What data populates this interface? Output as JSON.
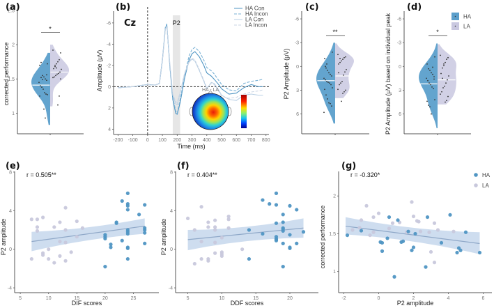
{
  "colors": {
    "HA": "#5b9fcb",
    "LA": "#c9c8e0",
    "HA_point": "#4f95c3",
    "LA_point": "#c8c8dc",
    "fit_line": "#8fa8c8",
    "ci_band": "#c5d7ec",
    "p2_window": "#e6e6e6"
  },
  "chart_data": [
    {
      "id": "a",
      "type": "violin",
      "panel_label": "(a)",
      "ylabel": "corrected performance",
      "ylim": [
        0.7,
        2.55
      ],
      "yticks": [
        1.0,
        1.5,
        2.0,
        2.5
      ],
      "significance": "*",
      "groups": [
        {
          "name": "HA",
          "median": 1.41,
          "range": [
            0.83,
            1.88
          ],
          "points": [
            1.72,
            1.7,
            1.74,
            1.55,
            1.53,
            1.5,
            1.48,
            1.45,
            1.4,
            1.38,
            1.35,
            1.3,
            1.28,
            1.27,
            1.25,
            1.52,
            1.49,
            1.06,
            0.93,
            1.56
          ]
        },
        {
          "name": "LA",
          "median": 1.6,
          "range": [
            1.1,
            2.0
          ],
          "points": [
            1.92,
            1.88,
            1.78,
            1.75,
            1.72,
            1.68,
            1.65,
            1.64,
            1.6,
            1.58,
            1.57,
            1.55,
            1.53,
            1.52,
            1.5,
            1.25,
            1.12,
            1.66,
            1.7
          ]
        }
      ]
    },
    {
      "id": "b",
      "type": "line",
      "panel_label": "(b)",
      "electrode": "Cz",
      "component": "P2",
      "xlabel": "Time (ms)",
      "ylabel": "Amplitude (μV)",
      "xlim": [
        -230,
        820
      ],
      "ylim": [
        4.5,
        -7.5
      ],
      "xticks": [
        -200,
        -100,
        0,
        100,
        200,
        300,
        400,
        500,
        600,
        700,
        800
      ],
      "yticks": [
        -6,
        -4,
        -2,
        0,
        2,
        4
      ],
      "window_ms": [
        170,
        220
      ],
      "topomap_title": "HA - LA",
      "legend": [
        "HA  Con",
        "HA  Incon",
        "LA  Con",
        "LA  Incon"
      ],
      "series": [
        {
          "name": "HA  Con",
          "x": [
            -200,
            -150,
            -100,
            -50,
            0,
            50,
            80,
            100,
            120,
            130,
            150,
            170,
            190,
            200,
            220,
            250,
            280,
            300,
            320,
            350,
            380,
            400,
            430,
            450,
            480,
            500,
            550,
            600,
            650,
            700,
            750,
            780
          ],
          "y": [
            0.1,
            0.05,
            0.0,
            -0.1,
            -0.2,
            -0.15,
            -0.3,
            -2.5,
            -5.5,
            -5.8,
            -2.0,
            1.2,
            2.5,
            2.6,
            1.5,
            -0.8,
            -2.5,
            -3.1,
            -3.3,
            -2.8,
            -2.0,
            -1.3,
            -1.0,
            -0.7,
            -0.2,
            0.2,
            0.7,
            0.6,
            0.1,
            -0.2,
            0.0,
            0.0
          ]
        },
        {
          "name": "HA  Incon",
          "x": [
            -200,
            -150,
            -100,
            -50,
            0,
            50,
            80,
            100,
            120,
            130,
            150,
            170,
            190,
            200,
            220,
            250,
            280,
            300,
            320,
            350,
            380,
            400,
            430,
            450,
            480,
            500,
            550,
            600,
            650,
            700,
            750,
            780
          ],
          "y": [
            0.1,
            0.05,
            0.0,
            -0.1,
            -0.2,
            -0.15,
            -0.3,
            -2.5,
            -5.6,
            -5.9,
            -2.1,
            1.0,
            2.3,
            2.5,
            1.2,
            -1.0,
            -2.9,
            -3.5,
            -3.7,
            -3.3,
            -2.5,
            -1.8,
            -1.5,
            -1.2,
            -0.6,
            -0.2,
            0.3,
            0.4,
            -0.3,
            -0.5,
            -0.6,
            -0.7
          ]
        },
        {
          "name": "LA  Con",
          "x": [
            -200,
            -150,
            -100,
            -50,
            0,
            50,
            80,
            100,
            120,
            130,
            150,
            170,
            190,
            200,
            220,
            250,
            280,
            300,
            320,
            350,
            380,
            400,
            430,
            450,
            480,
            500,
            550,
            600,
            650,
            700,
            750,
            780
          ],
          "y": [
            0.1,
            0.05,
            0.0,
            -0.1,
            -0.2,
            -0.15,
            -0.3,
            -2.4,
            -5.4,
            -5.7,
            -2.2,
            0.8,
            1.6,
            1.7,
            0.6,
            -1.2,
            -2.3,
            -2.6,
            -2.4,
            -1.5,
            -0.5,
            0.2,
            -0.4,
            -0.3,
            0.3,
            0.8,
            1.2,
            1.3,
            0.8,
            0.7,
            0.8,
            0.8
          ]
        },
        {
          "name": "LA  Incon",
          "x": [
            -200,
            -150,
            -100,
            -50,
            0,
            50,
            80,
            100,
            120,
            130,
            150,
            170,
            190,
            200,
            220,
            250,
            280,
            300,
            320,
            350,
            380,
            400,
            430,
            450,
            480,
            500,
            550,
            600,
            650,
            700,
            750,
            780
          ],
          "y": [
            0.1,
            0.05,
            0.0,
            -0.1,
            -0.2,
            -0.15,
            -0.3,
            -2.4,
            -5.4,
            -5.7,
            -2.3,
            0.7,
            1.4,
            1.5,
            0.5,
            -1.3,
            -2.4,
            -2.7,
            -2.5,
            -1.6,
            -0.6,
            0.1,
            -0.3,
            -0.2,
            0.4,
            0.9,
            1.1,
            1.0,
            0.7,
            0.5,
            0.4,
            0.3
          ]
        }
      ]
    },
    {
      "id": "c",
      "type": "violin",
      "panel_label": "(c)",
      "ylabel": "P2 Amplitude (μV)",
      "ylim": [
        8.5,
        -7.5
      ],
      "yticks": [
        -6,
        -3,
        0,
        3,
        6
      ],
      "significance": "**",
      "groups": [
        {
          "name": "HA",
          "median": 1.8,
          "range": [
            -3.0,
            7.2
          ],
          "points": [
            -1.8,
            -1.0,
            0.2,
            0.5,
            0.8,
            1.0,
            1.2,
            1.5,
            1.7,
            1.9,
            2.0,
            2.1,
            2.3,
            2.7,
            2.9,
            3.6,
            4.1,
            4.6,
            4.7,
            5.0,
            5.8,
            0.0,
            -0.3
          ]
        },
        {
          "name": "LA",
          "median": 1.2,
          "range": [
            -2.9,
            4.0
          ],
          "points": [
            -1.5,
            -1.2,
            -1.1,
            -0.9,
            -0.7,
            -0.5,
            -0.3,
            0.4,
            0.7,
            1.1,
            1.9,
            2.1,
            2.3,
            2.9,
            3.0,
            3.2,
            3.4,
            4.4,
            -1.0,
            0.8
          ]
        }
      ]
    },
    {
      "id": "d",
      "type": "violin",
      "panel_label": "(d)",
      "ylabel": "P2 Amplitude (μV) based on individual peak",
      "ylim": [
        8.5,
        -7.5
      ],
      "yticks": [
        -6,
        -3,
        0,
        3,
        6
      ],
      "significance": "*",
      "legend": [
        "HA",
        "LA"
      ],
      "groups": [
        {
          "name": "HA",
          "median": 2.2,
          "range": [
            -2.9,
            7.8
          ],
          "points": [
            -1.2,
            -0.3,
            0.3,
            0.5,
            0.8,
            1.0,
            1.3,
            1.5,
            1.8,
            2.1,
            2.3,
            2.6,
            2.8,
            4.2,
            4.4,
            4.9,
            5.1,
            6.0,
            0.1,
            1.6
          ]
        },
        {
          "name": "LA",
          "median": 1.7,
          "range": [
            -2.8,
            4.8
          ],
          "points": [
            -1.4,
            -1.1,
            -0.9,
            -0.5,
            -0.1,
            0.2,
            0.9,
            1.2,
            1.7,
            2.1,
            2.5,
            2.7,
            3.2,
            3.5,
            3.8,
            4.3,
            4.5,
            -0.3,
            1.5
          ]
        }
      ]
    },
    {
      "id": "e",
      "type": "scatter",
      "panel_label": "(e)",
      "annotation": "r = 0.505**",
      "xlabel": "DIF scores",
      "ylabel": "P2 amplitude",
      "xlim": [
        4,
        29.5
      ],
      "ylim": [
        -4.5,
        8.5
      ],
      "xticks": [
        5,
        10,
        15,
        20,
        25
      ],
      "yticks": [
        -4,
        0,
        4,
        8
      ],
      "fit": {
        "x": [
          7,
          27
        ],
        "y": [
          0.8,
          2.4
        ],
        "ci_lower": [
          -0.2,
          1.6
        ],
        "ci_upper": [
          1.8,
          3.2
        ]
      },
      "series": [
        {
          "name": "LA",
          "x": [
            7,
            7,
            8,
            8,
            8,
            9,
            9,
            9,
            10,
            10,
            11,
            11,
            12,
            12,
            12,
            13,
            13,
            13,
            13,
            14,
            15,
            15,
            16
          ],
          "y": [
            3.1,
            -1.0,
            3.1,
            2.3,
            1.9,
            3.3,
            -0.4,
            -0.6,
            0.0,
            -1.0,
            2.3,
            -1.4,
            2.8,
            0.8,
            -0.7,
            4.3,
            2.0,
            0.7,
            -1.2,
            -0.3,
            2.9,
            1.3,
            2.2
          ]
        },
        {
          "name": "HA",
          "x": [
            20,
            20,
            20,
            20,
            21,
            21,
            22,
            22,
            23,
            23,
            24,
            24,
            24,
            24,
            24,
            24,
            24,
            24,
            24,
            24,
            26,
            27,
            27,
            27,
            27,
            27
          ],
          "y": [
            1.5,
            1.3,
            1.1,
            -1.8,
            0.5,
            0.2,
            2.8,
            2.7,
            5.0,
            0.9,
            5.8,
            4.7,
            4.5,
            4.1,
            2.0,
            1.6,
            0.2,
            0.1,
            -1.0,
            1.8,
            3.6,
            4.6,
            2.2,
            2.0,
            1.7,
            0.6
          ]
        }
      ]
    },
    {
      "id": "f",
      "type": "scatter",
      "panel_label": "(f)",
      "annotation": "r = 0.404**",
      "xlabel": "DDF scores",
      "ylabel": "P2 amplitude",
      "xlim": [
        3.2,
        24.2
      ],
      "ylim": [
        -4.5,
        8.5
      ],
      "xticks": [
        5,
        10,
        15,
        20
      ],
      "yticks": [
        -4,
        0,
        4,
        8
      ],
      "fit": {
        "x": [
          5,
          22
        ],
        "y": [
          1.0,
          2.2
        ],
        "ci_lower": [
          -0.1,
          1.2
        ],
        "ci_upper": [
          2.0,
          3.2
        ]
      },
      "series": [
        {
          "name": "LA",
          "x": [
            5,
            6,
            6,
            7,
            7,
            7,
            8,
            8,
            8,
            8,
            9,
            9,
            9,
            9,
            9,
            10,
            10,
            10,
            10,
            11,
            11,
            11,
            13
          ],
          "y": [
            3.2,
            2.0,
            -1.5,
            4.4,
            0.8,
            -1.0,
            2.8,
            2.3,
            -1.0,
            -1.2,
            3.0,
            2.3,
            2.0,
            0.7,
            -0.4,
            1.2,
            -0.3,
            -0.5,
            -0.7,
            3.4,
            3.1,
            2.2,
            0.0
          ]
        },
        {
          "name": "HA",
          "x": [
            14,
            14,
            16,
            16,
            17,
            18,
            18,
            18,
            18,
            18,
            18,
            18,
            19,
            19,
            19,
            19,
            19,
            19,
            19,
            20,
            20,
            20,
            20,
            21,
            21,
            22
          ],
          "y": [
            2.0,
            -1.0,
            5.1,
            1.6,
            4.7,
            5.8,
            4.6,
            2.7,
            1.3,
            1.1,
            1.0,
            0.9,
            3.6,
            2.8,
            2.1,
            1.9,
            0.6,
            -1.8,
            2.2,
            4.5,
            1.5,
            0.2,
            0.1,
            4.1,
            0.6,
            1.8
          ]
        }
      ]
    },
    {
      "id": "g",
      "type": "scatter",
      "panel_label": "(g)",
      "annotation": "r = -0.320*",
      "xlabel": "P2 amplitude",
      "ylabel": "corrected performance",
      "xlim": [
        -2.3,
        6.5
      ],
      "ylim": [
        0.72,
        2.38
      ],
      "xticks": [
        -2,
        0,
        2,
        4,
        6
      ],
      "yticks": [
        1.0,
        1.5,
        2.0
      ],
      "legend": [
        "HA",
        "LA"
      ],
      "fit": {
        "x": [
          -1.9,
          5.8
        ],
        "y": [
          1.6,
          1.37
        ],
        "ci_lower": [
          1.49,
          1.23
        ],
        "ci_upper": [
          1.72,
          1.52
        ]
      },
      "series": [
        {
          "name": "HA",
          "x": [
            -1.8,
            -1.0,
            0.1,
            0.2,
            0.2,
            0.5,
            0.6,
            0.9,
            1.1,
            1.3,
            1.4,
            1.7,
            1.9,
            2.0,
            2.1,
            2.7,
            2.8,
            3.6,
            4.1,
            4.5,
            4.6,
            4.7,
            5.0,
            5.8
          ],
          "y": [
            1.48,
            1.54,
            1.39,
            1.38,
            1.27,
            1.44,
            1.72,
            0.93,
            1.68,
            1.39,
            1.4,
            1.53,
            1.28,
            1.32,
            1.5,
            1.06,
            1.72,
            1.38,
            1.75,
            1.25,
            1.31,
            1.28,
            1.52,
            1.25
          ]
        },
        {
          "name": "LA",
          "x": [
            -1.5,
            -1.1,
            -1.0,
            -0.7,
            -0.5,
            -0.3,
            -0.3,
            0.0,
            0.6,
            0.8,
            1.2,
            1.6,
            1.9,
            2.0,
            2.2,
            2.3,
            2.4,
            2.9,
            3.0,
            3.2,
            3.2,
            3.4,
            4.3
          ],
          "y": [
            1.55,
            1.58,
            1.68,
            1.87,
            1.48,
            1.52,
            1.72,
            1.77,
            1.57,
            1.64,
            1.65,
            1.52,
            1.92,
            1.73,
            1.67,
            1.66,
            1.53,
            1.52,
            1.26,
            1.64,
            1.12,
            1.55,
            1.53
          ]
        }
      ]
    }
  ]
}
